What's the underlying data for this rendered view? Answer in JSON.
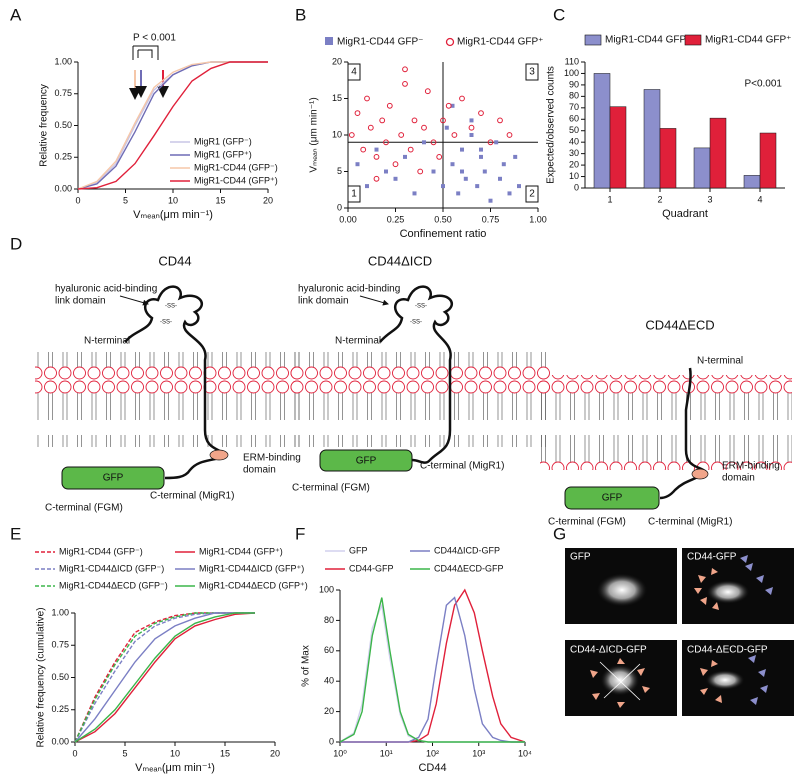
{
  "panel_labels": [
    "A",
    "B",
    "C",
    "D",
    "E",
    "F",
    "G"
  ],
  "chart_data": [
    {
      "type": "line",
      "xlabel": "Vₘₑₐₙ(μm min⁻¹)",
      "ylabel": "Relative frequency",
      "annotation": "P < 0.001",
      "x": [
        0,
        2,
        4,
        6,
        8,
        10,
        12,
        14,
        16,
        18,
        20
      ],
      "xlim": [
        0,
        20
      ],
      "xticks": [
        0,
        5,
        10,
        15,
        20
      ],
      "ylim": [
        0,
        1
      ],
      "yticks": [
        {
          "value": 0,
          "label": "0.00"
        },
        {
          "value": 0.25,
          "label": "0.25"
        },
        {
          "value": 0.5,
          "label": "0.50"
        },
        {
          "value": 0.75,
          "label": "0.75"
        },
        {
          "value": 1,
          "label": "1.00"
        }
      ],
      "series": [
        {
          "name": "MigR1 (GFP⁻)",
          "color": "#c9c5e6",
          "values": [
            0,
            0.05,
            0.2,
            0.5,
            0.78,
            0.9,
            0.97,
            1,
            1,
            1,
            1
          ]
        },
        {
          "name": "MigR1 (GFP⁺)",
          "color": "#6f6cb5",
          "values": [
            0,
            0.04,
            0.18,
            0.45,
            0.75,
            0.9,
            0.97,
            1,
            1,
            1,
            1
          ]
        },
        {
          "name": "MigR1-CD44 (GFP⁻)",
          "color": "#f5c7a9",
          "values": [
            0,
            0.06,
            0.22,
            0.52,
            0.8,
            0.92,
            0.98,
            1,
            1,
            1,
            1
          ]
        },
        {
          "name": "MigR1-CD44 (GFP⁺)",
          "color": "#e0203a",
          "values": [
            0,
            0.01,
            0.06,
            0.2,
            0.42,
            0.65,
            0.85,
            0.95,
            1,
            1,
            1
          ]
        }
      ]
    },
    {
      "type": "scatter",
      "xlabel": "Confinement ratio",
      "ylabel": "Vₘₑₐₙ (μm min⁻¹)",
      "xlim": [
        0,
        1
      ],
      "xticks": [
        {
          "value": 0,
          "label": "0.00"
        },
        {
          "value": 0.25,
          "label": "0.25"
        },
        {
          "value": 0.5,
          "label": "0.50"
        },
        {
          "value": 0.75,
          "label": "0.75"
        },
        {
          "value": 1,
          "label": "1.00"
        }
      ],
      "ylim": [
        0,
        20
      ],
      "yticks": [
        0,
        5,
        10,
        15,
        20
      ],
      "hline": 9,
      "vline": 0.5,
      "quadrant_labels": [
        "1",
        "2",
        "3",
        "4"
      ],
      "series": [
        {
          "name": "MigR1-CD44 GFP⁻",
          "color": "#7b7fc4",
          "marker": "square",
          "x": [
            0.05,
            0.1,
            0.15,
            0.2,
            0.25,
            0.3,
            0.35,
            0.4,
            0.45,
            0.5,
            0.52,
            0.55,
            0.58,
            0.6,
            0.62,
            0.65,
            0.68,
            0.7,
            0.72,
            0.75,
            0.78,
            0.8,
            0.82,
            0.85,
            0.88,
            0.9,
            0.55,
            0.6,
            0.65,
            0.7
          ],
          "values": [
            6,
            3,
            8,
            5,
            4,
            7,
            2,
            9,
            5,
            3,
            11,
            6,
            2,
            8,
            4,
            10,
            3,
            7,
            5,
            1,
            9,
            4,
            6,
            2,
            7,
            3,
            14,
            5,
            12,
            8
          ]
        },
        {
          "name": "MigR1-CD44 GFP⁺",
          "color": "#e0203a",
          "marker": "circle-open",
          "x": [
            0.02,
            0.05,
            0.08,
            0.1,
            0.12,
            0.15,
            0.18,
            0.2,
            0.22,
            0.25,
            0.28,
            0.3,
            0.33,
            0.35,
            0.38,
            0.4,
            0.42,
            0.45,
            0.48,
            0.5,
            0.53,
            0.56,
            0.6,
            0.65,
            0.7,
            0.75,
            0.8,
            0.85,
            0.3,
            0.15
          ],
          "values": [
            10,
            13,
            8,
            15,
            11,
            7,
            12,
            9,
            14,
            6,
            10,
            17,
            8,
            12,
            5,
            11,
            16,
            9,
            7,
            12,
            14,
            10,
            15,
            11,
            13,
            9,
            12,
            10,
            19,
            4
          ]
        }
      ]
    },
    {
      "type": "bar",
      "xlabel": "Quadrant",
      "ylabel": "Expected/observed counts",
      "annotation": "P<0.001",
      "categories": [
        "1",
        "2",
        "3",
        "4"
      ],
      "ylim": [
        0,
        110
      ],
      "yticks": [
        0,
        10,
        20,
        30,
        40,
        50,
        60,
        70,
        80,
        90,
        100,
        110
      ],
      "series": [
        {
          "name": "MigR1-CD44 GFP⁻",
          "color": "#8c8fcc",
          "values": [
            100,
            86,
            35,
            11
          ]
        },
        {
          "name": "MigR1-CD44 GFP⁺",
          "color": "#e0203a",
          "values": [
            71,
            52,
            61,
            48
          ]
        }
      ]
    },
    {
      "type": "line",
      "xlabel": "Vₘₑₐₙ(μm min⁻¹)",
      "ylabel": "Relative frequency (cumulative)",
      "x": [
        0,
        2,
        4,
        6,
        8,
        10,
        12,
        14,
        16,
        18
      ],
      "xlim": [
        0,
        20
      ],
      "xticks": [
        0,
        5,
        10,
        15,
        20
      ],
      "ylim": [
        0,
        1
      ],
      "yticks": [
        {
          "value": 0,
          "label": "0.00"
        },
        {
          "value": 0.25,
          "label": "0.25"
        },
        {
          "value": 0.5,
          "label": "0.50"
        },
        {
          "value": 0.75,
          "label": "0.75"
        },
        {
          "value": 1,
          "label": "1.00"
        }
      ],
      "series": [
        {
          "name": "MigR1-CD44 (GFP⁻)",
          "color": "#e0203a",
          "dash": true,
          "values": [
            0,
            0.35,
            0.62,
            0.85,
            0.93,
            0.98,
            1,
            1,
            1,
            1
          ]
        },
        {
          "name": "MigR1-CD44ΔICD (GFP⁻)",
          "color": "#7b7fc4",
          "dash": true,
          "values": [
            0,
            0.3,
            0.55,
            0.78,
            0.9,
            0.96,
            0.99,
            1,
            1,
            1
          ]
        },
        {
          "name": "MigR1-CD44ΔECD (GFP⁻)",
          "color": "#3bb54a",
          "dash": true,
          "values": [
            0,
            0.33,
            0.6,
            0.82,
            0.92,
            0.97,
            1,
            1,
            1,
            1
          ]
        },
        {
          "name": "MigR1-CD44 (GFP⁺)",
          "color": "#e0203a",
          "values": [
            0,
            0.08,
            0.22,
            0.42,
            0.62,
            0.8,
            0.9,
            0.95,
            0.99,
            1
          ]
        },
        {
          "name": "MigR1-CD44ΔICD (GFP⁺)",
          "color": "#7b7fc4",
          "values": [
            0,
            0.18,
            0.4,
            0.62,
            0.8,
            0.9,
            0.96,
            1,
            1,
            1
          ]
        },
        {
          "name": "MigR1-CD44ΔECD (GFP⁺)",
          "color": "#3bb54a",
          "values": [
            0,
            0.1,
            0.25,
            0.45,
            0.65,
            0.82,
            0.92,
            0.97,
            1,
            1
          ]
        }
      ]
    },
    {
      "type": "line",
      "xscale": "log",
      "xlabel": "CD44",
      "ylabel": "% of Max",
      "x": [
        1,
        2,
        3,
        5,
        8,
        12,
        20,
        30,
        50,
        80,
        120,
        200,
        300,
        500,
        800,
        1200,
        2000,
        3000,
        5000,
        10000
      ],
      "xlim": [
        1,
        10000
      ],
      "xticks": [
        {
          "value": 1,
          "label": "10⁰"
        },
        {
          "value": 10,
          "label": "10¹"
        },
        {
          "value": 100,
          "label": "10²"
        },
        {
          "value": 1000,
          "label": "10³"
        },
        {
          "value": 10000,
          "label": "10⁴"
        }
      ],
      "ylim": [
        0,
        100
      ],
      "yticks": [
        0,
        20,
        40,
        60,
        80,
        100
      ],
      "series": [
        {
          "name": "GFP",
          "color": "#d2d0ee",
          "values": [
            0,
            6,
            25,
            75,
            90,
            55,
            18,
            4,
            1,
            0,
            0,
            0,
            0,
            0,
            0,
            0,
            0,
            0,
            0,
            0
          ]
        },
        {
          "name": "CD44-GFP",
          "color": "#e0203a",
          "values": [
            0,
            0,
            0,
            0,
            0,
            0,
            0,
            0,
            1,
            5,
            25,
            65,
            90,
            100,
            85,
            60,
            30,
            12,
            3,
            0
          ]
        },
        {
          "name": "CD44ΔICD-GFP",
          "color": "#7b7fc4",
          "values": [
            0,
            0,
            0,
            0,
            0,
            0,
            0,
            0,
            3,
            15,
            50,
            90,
            95,
            70,
            35,
            12,
            3,
            1,
            0,
            0
          ]
        },
        {
          "name": "CD44ΔECD-GFP",
          "color": "#3bb54a",
          "values": [
            0,
            5,
            20,
            70,
            95,
            60,
            20,
            5,
            1,
            0,
            0,
            0,
            0,
            0,
            0,
            0,
            0,
            0,
            0,
            0
          ]
        }
      ]
    }
  ],
  "diagram": {
    "constructs": [
      {
        "title": "CD44",
        "ha_label": [
          "hyaluronic acid-binding",
          "link domain"
        ],
        "n_terminal": "N-terminal",
        "erm": [
          "ERM-binding",
          "domain"
        ],
        "gfp": "GFP",
        "c_fgm": "C-terminal (FGM)",
        "c_migr1": "C-terminal (MigR1)",
        "ss": "-SS-"
      },
      {
        "title": "CD44ΔICD",
        "ha_label": [
          "hyaluronic acid-binding",
          "link domain"
        ],
        "n_terminal": "N-terminal",
        "gfp": "GFP",
        "c_fgm": "C-terminal (FGM)",
        "c_migr1": "C-terminal (MigR1)",
        "ss": "-SS-"
      },
      {
        "title": "CD44ΔECD",
        "n_terminal": "N-terminal",
        "erm": [
          "ERM-binding",
          "domain"
        ],
        "gfp": "GFP",
        "c_fgm": "C-terminal (FGM)",
        "c_migr1": "C-terminal (MigR1)"
      }
    ]
  },
  "images": {
    "labels": [
      "GFP",
      "CD44-GFP",
      "CD44-ΔICD-GFP",
      "CD44-ΔECD-GFP"
    ]
  }
}
